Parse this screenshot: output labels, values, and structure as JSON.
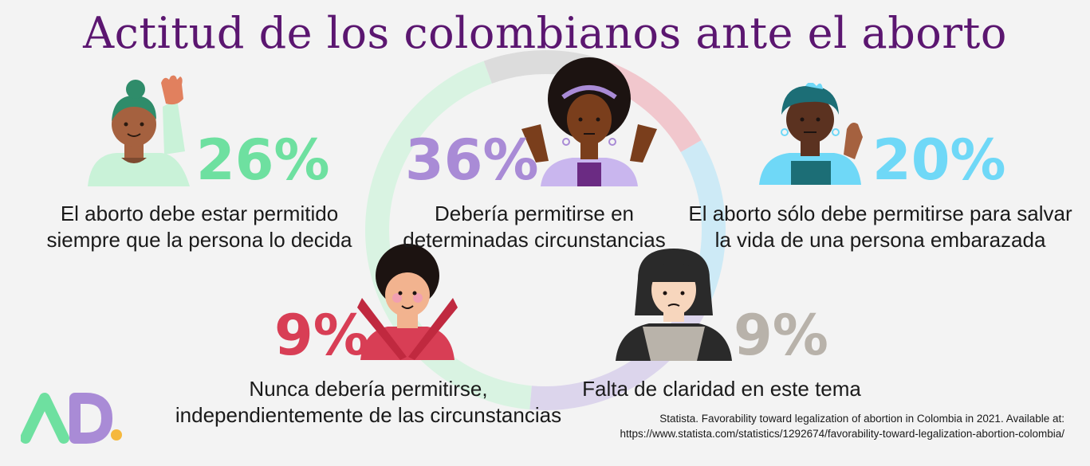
{
  "title": "Actitud de los colombianos ante el aborto",
  "chart_data": {
    "type": "pie",
    "title": "Actitud de los colombianos ante el aborto",
    "categories": [
      "El aborto debe estar permitido siempre que la persona lo decida",
      "Debería permitirse en determinadas circunstancias",
      "El aborto sólo debe permitirse para salvar la vida de una persona embarazada",
      "Nunca debería permitirse, independientemente de las circunstancias",
      "Falta de claridad en este tema"
    ],
    "values": [
      26,
      36,
      20,
      9,
      9
    ],
    "value_labels": [
      "26%",
      "36%",
      "20%",
      "9%",
      "9%"
    ]
  },
  "items": [
    {
      "pct": "26%",
      "line1": "El aborto debe estar permitido",
      "line2": "siempre que la persona lo decida",
      "color": "#6ee0a0"
    },
    {
      "pct": "36%",
      "line1": "Debería permitirse en",
      "line2": "determinadas circunstancias",
      "color": "#a98bd6"
    },
    {
      "pct": "20%",
      "line1": "El aborto sólo debe permitirse para salvar",
      "line2": "la vida de una persona embarazada",
      "color": "#6fd8f7"
    },
    {
      "pct": "9%",
      "line1": "Nunca debería permitirse,",
      "line2": "independientemente de las circunstancias",
      "color": "#d83e55"
    },
    {
      "pct": "9%",
      "line1": "Falta de claridad en este tema",
      "line2": "",
      "color": "#b8b2aa"
    }
  ],
  "ring_colors": [
    "#d9f3e2",
    "#dcdcdc",
    "#f1c7cd",
    "#cdeaf6",
    "#dcd5ec"
  ],
  "logo": {
    "text": "AD",
    "colors": [
      "#6ee0a0",
      "#a98bd6",
      "#f5b83d"
    ]
  },
  "source": {
    "line1": "Statista. Favorability toward legalization of abortion in Colombia in 2021. Available at:",
    "line2": "https://www.statista.com/statistics/1292674/favorability-toward-legalization-abortion-colombia/"
  }
}
